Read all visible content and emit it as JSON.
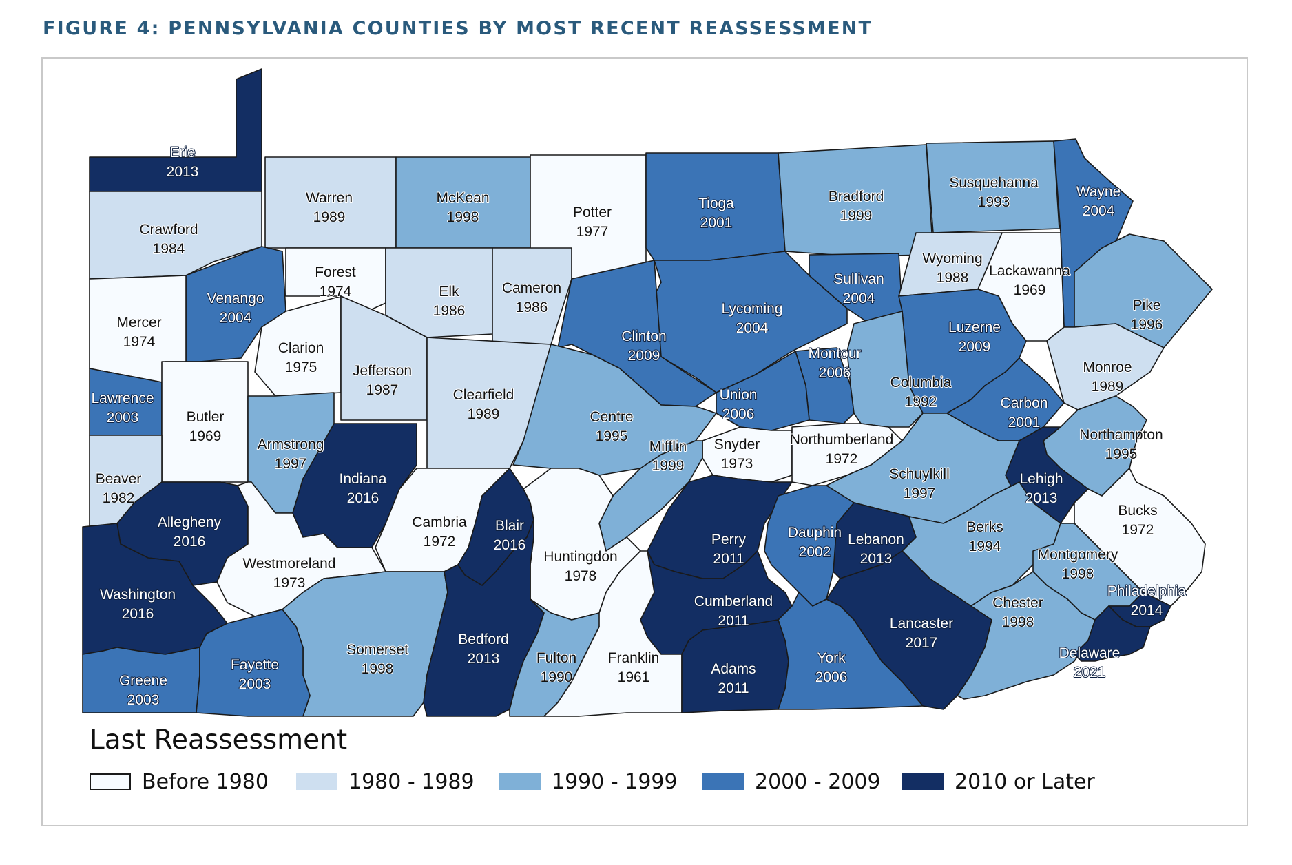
{
  "figure_title": "FIGURE 4:  PENNSYLVANIA COUNTIES BY MOST RECENT REASSESSMENT",
  "legend": {
    "title": "Last Reassessment",
    "items": [
      {
        "label": "Before 1980",
        "color": "#f7fbff"
      },
      {
        "label": "1980 - 1989",
        "color": "#cedff0"
      },
      {
        "label": "1990 - 1999",
        "color": "#7fb0d7"
      },
      {
        "label": "2000 - 2009",
        "color": "#3b74b6"
      },
      {
        "label": "2010 or Later",
        "color": "#132e63"
      }
    ]
  },
  "colors": {
    "title": "#2a5a7c",
    "border": "#1a1a1a",
    "frame": "#c9c9c9"
  },
  "counties": [
    {
      "name": "Erie",
      "year": "2013",
      "category": 4
    },
    {
      "name": "Warren",
      "year": "1989",
      "category": 1
    },
    {
      "name": "McKean",
      "year": "1998",
      "category": 2
    },
    {
      "name": "Potter",
      "year": "1977",
      "category": 0
    },
    {
      "name": "Tioga",
      "year": "2001",
      "category": 3
    },
    {
      "name": "Bradford",
      "year": "1999",
      "category": 2
    },
    {
      "name": "Susquehanna",
      "year": "1993",
      "category": 2
    },
    {
      "name": "Wayne",
      "year": "2004",
      "category": 3
    },
    {
      "name": "Crawford",
      "year": "1984",
      "category": 1
    },
    {
      "name": "Forest",
      "year": "1974",
      "category": 0
    },
    {
      "name": "Elk",
      "year": "1986",
      "category": 1
    },
    {
      "name": "Cameron",
      "year": "1986",
      "category": 1
    },
    {
      "name": "Venango",
      "year": "2004",
      "category": 3
    },
    {
      "name": "Mercer",
      "year": "1974",
      "category": 0
    },
    {
      "name": "Lycoming",
      "year": "2004",
      "category": 3
    },
    {
      "name": "Sullivan",
      "year": "2004",
      "category": 3
    },
    {
      "name": "Wyoming",
      "year": "1988",
      "category": 1
    },
    {
      "name": "Lackawanna",
      "year": "1969",
      "category": 0
    },
    {
      "name": "Pike",
      "year": "1996",
      "category": 2
    },
    {
      "name": "Clarion",
      "year": "1975",
      "category": 0
    },
    {
      "name": "Jefferson",
      "year": "1987",
      "category": 1
    },
    {
      "name": "Clinton",
      "year": "2009",
      "category": 3
    },
    {
      "name": "Luzerne",
      "year": "2009",
      "category": 3
    },
    {
      "name": "Montour",
      "year": "2006",
      "category": 3
    },
    {
      "name": "Monroe",
      "year": "1989",
      "category": 1
    },
    {
      "name": "Lawrence",
      "year": "2003",
      "category": 3
    },
    {
      "name": "Butler",
      "year": "1969",
      "category": 0
    },
    {
      "name": "Clearfield",
      "year": "1989",
      "category": 1
    },
    {
      "name": "Centre",
      "year": "1995",
      "category": 2
    },
    {
      "name": "Union",
      "year": "2006",
      "category": 3
    },
    {
      "name": "Columbia",
      "year": "1992",
      "category": 2
    },
    {
      "name": "Carbon",
      "year": "2001",
      "category": 3
    },
    {
      "name": "Armstrong",
      "year": "1997",
      "category": 2
    },
    {
      "name": "Snyder",
      "year": "1973",
      "category": 0
    },
    {
      "name": "Northumberland",
      "year": "1972",
      "category": 0
    },
    {
      "name": "Northampton",
      "year": "1995",
      "category": 2
    },
    {
      "name": "Beaver",
      "year": "1982",
      "category": 1
    },
    {
      "name": "Indiana",
      "year": "2016",
      "category": 4
    },
    {
      "name": "Mifflin",
      "year": "1999",
      "category": 2
    },
    {
      "name": "Schuylkill",
      "year": "1997",
      "category": 2
    },
    {
      "name": "Lehigh",
      "year": "2013",
      "category": 4
    },
    {
      "name": "Allegheny",
      "year": "2016",
      "category": 4
    },
    {
      "name": "Cambria",
      "year": "1972",
      "category": 0
    },
    {
      "name": "Blair",
      "year": "2016",
      "category": 4
    },
    {
      "name": "Bucks",
      "year": "1972",
      "category": 0
    },
    {
      "name": "Westmoreland",
      "year": "1973",
      "category": 0
    },
    {
      "name": "Huntingdon",
      "year": "1978",
      "category": 0
    },
    {
      "name": "Perry",
      "year": "2011",
      "category": 4
    },
    {
      "name": "Dauphin",
      "year": "2002",
      "category": 3
    },
    {
      "name": "Lebanon",
      "year": "2013",
      "category": 4
    },
    {
      "name": "Berks",
      "year": "1994",
      "category": 2
    },
    {
      "name": "Montgomery",
      "year": "1998",
      "category": 2
    },
    {
      "name": "Washington",
      "year": "2016",
      "category": 4
    },
    {
      "name": "Cumberland",
      "year": "2011",
      "category": 4
    },
    {
      "name": "Lancaster",
      "year": "2017",
      "category": 4
    },
    {
      "name": "Chester",
      "year": "1998",
      "category": 2
    },
    {
      "name": "Philadelphia",
      "year": "2014",
      "category": 4
    },
    {
      "name": "Somerset",
      "year": "1998",
      "category": 2
    },
    {
      "name": "Bedford",
      "year": "2013",
      "category": 4
    },
    {
      "name": "Fulton",
      "year": "1990",
      "category": 2
    },
    {
      "name": "Franklin",
      "year": "1961",
      "category": 0
    },
    {
      "name": "Adams",
      "year": "2011",
      "category": 4
    },
    {
      "name": "York",
      "year": "2006",
      "category": 3
    },
    {
      "name": "Delaware",
      "year": "2021",
      "category": 4
    },
    {
      "name": "Greene",
      "year": "2003",
      "category": 3
    },
    {
      "name": "Fayette",
      "year": "2003",
      "category": 3
    }
  ]
}
